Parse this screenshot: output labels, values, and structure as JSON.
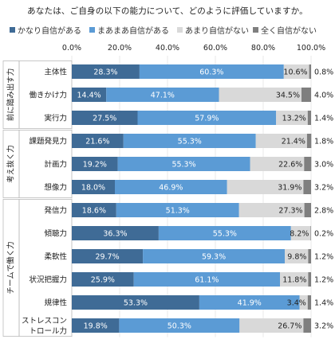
{
  "chart_data": {
    "type": "bar",
    "stacked": true,
    "orientation": "horizontal",
    "title": "あなたは、ご自身の以下の能力について、どのように評価していますか。",
    "xlim": [
      0,
      100
    ],
    "x_ticks": [
      "0.0%",
      "20.0%",
      "40.0%",
      "60.0%",
      "80.0%",
      "100.0%"
    ],
    "legend_position": "top",
    "grid": true,
    "groups": [
      {
        "label": "前に踏み出す力",
        "categories": [
          "主体性",
          "働きかけ力",
          "実行力"
        ]
      },
      {
        "label": "考え抜く力",
        "categories": [
          "課題発見力",
          "計画力",
          "想像力"
        ]
      },
      {
        "label": "チームで働く力",
        "categories": [
          "発信力",
          "傾聴力",
          "柔軟性",
          "状況把握力",
          "規律性",
          "ストレスコントロール力"
        ]
      }
    ],
    "categories": [
      "主体性",
      "働きかけ力",
      "実行力",
      "課題発見力",
      "計画力",
      "想像力",
      "発信力",
      "傾聴力",
      "柔軟性",
      "状況把握力",
      "規律性",
      "ストレスコントロール力"
    ],
    "category_display": [
      [
        "主体性"
      ],
      [
        "働きかけ力"
      ],
      [
        "実行力"
      ],
      [
        "課題発見力"
      ],
      [
        "計画力"
      ],
      [
        "想像力"
      ],
      [
        "発信力"
      ],
      [
        "傾聴力"
      ],
      [
        "柔軟性"
      ],
      [
        "状況把握力"
      ],
      [
        "規律性"
      ],
      [
        "ストレスコン",
        "トロール力"
      ]
    ],
    "series": [
      {
        "name": "かなり自信がある",
        "color": "#3f6b96",
        "values": [
          28.3,
          14.4,
          27.5,
          21.6,
          19.2,
          18.0,
          18.6,
          36.3,
          29.7,
          25.9,
          53.3,
          19.8
        ],
        "labels": [
          "28.3%",
          "14.4%",
          "27.5%",
          "21.6%",
          "19.2%",
          "18.0%",
          "18.6%",
          "36.3%",
          "29.7%",
          "25.9%",
          "53.3%",
          "19.8%"
        ]
      },
      {
        "name": "まあまあ自信がある",
        "color": "#5b9bd5",
        "values": [
          60.3,
          47.1,
          57.9,
          55.3,
          55.3,
          46.9,
          51.3,
          55.3,
          59.3,
          61.1,
          41.9,
          50.3
        ],
        "labels": [
          "60.3%",
          "47.1%",
          "57.9%",
          "55.3%",
          "55.3%",
          "46.9%",
          "51.3%",
          "55.3%",
          "59.3%",
          "61.1%",
          "41.9%",
          "50.3%"
        ]
      },
      {
        "name": "あまり自信がない",
        "color": "#d9d9d9",
        "values": [
          10.6,
          34.5,
          13.2,
          21.4,
          22.6,
          31.9,
          27.3,
          8.2,
          9.8,
          11.8,
          3.4,
          26.7
        ],
        "labels": [
          "10.6%",
          "34.5%",
          "13.2%",
          "21.4%",
          "22.6%",
          "31.9%",
          "27.3%",
          "8.2%",
          "9.8%",
          "11.8%",
          "3.4%",
          "26.7%"
        ]
      },
      {
        "name": "全く自信がない",
        "color": "#7f7f7f",
        "values": [
          0.8,
          4.0,
          1.4,
          1.8,
          3.0,
          3.2,
          2.8,
          0.2,
          1.2,
          1.2,
          1.4,
          3.2
        ],
        "labels": [
          "0.8%",
          "4.0%",
          "1.4%",
          "1.8%",
          "3.0%",
          "3.2%",
          "2.8%",
          "0.2%",
          "1.2%",
          "1.2%",
          "1.4%",
          "3.2%"
        ]
      }
    ]
  }
}
